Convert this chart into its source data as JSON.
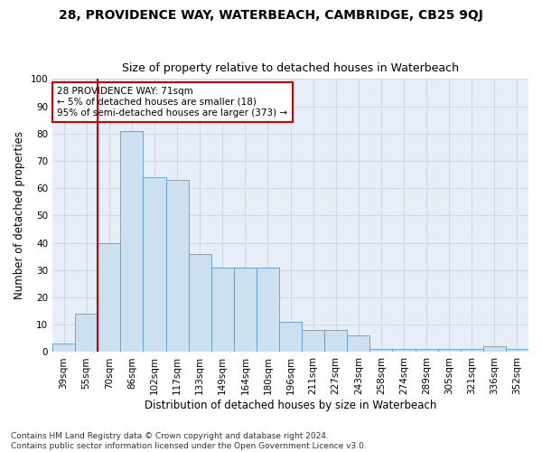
{
  "title1": "28, PROVIDENCE WAY, WATERBEACH, CAMBRIDGE, CB25 9QJ",
  "title2": "Size of property relative to detached houses in Waterbeach",
  "xlabel": "Distribution of detached houses by size in Waterbeach",
  "ylabel": "Number of detached properties",
  "categories": [
    "39sqm",
    "55sqm",
    "70sqm",
    "86sqm",
    "102sqm",
    "117sqm",
    "133sqm",
    "149sqm",
    "164sqm",
    "180sqm",
    "196sqm",
    "211sqm",
    "227sqm",
    "243sqm",
    "258sqm",
    "274sqm",
    "289sqm",
    "305sqm",
    "321sqm",
    "336sqm",
    "352sqm"
  ],
  "values": [
    3,
    14,
    40,
    81,
    64,
    63,
    36,
    31,
    31,
    31,
    11,
    8,
    8,
    6,
    1,
    1,
    1,
    1,
    1,
    2,
    1
  ],
  "bar_color": "#cce0f0",
  "bar_edge_color": "#5b9bd5",
  "vline_color": "#cc0000",
  "vline_x_index": 2,
  "annotation_text": "28 PROVIDENCE WAY: 71sqm\n← 5% of detached houses are smaller (18)\n95% of semi-detached houses are larger (373) →",
  "annotation_box_color": "#ffffff",
  "annotation_box_edge": "#cc0000",
  "ylim": [
    0,
    100
  ],
  "yticks": [
    0,
    10,
    20,
    30,
    40,
    50,
    60,
    70,
    80,
    90,
    100
  ],
  "grid_color": "#d0d8e8",
  "background_color": "#e8eef8",
  "footnote": "Contains HM Land Registry data © Crown copyright and database right 2024.\nContains public sector information licensed under the Open Government Licence v3.0.",
  "title_fontsize": 10,
  "subtitle_fontsize": 9,
  "axis_label_fontsize": 8.5,
  "tick_fontsize": 7.5,
  "footnote_fontsize": 6.5
}
